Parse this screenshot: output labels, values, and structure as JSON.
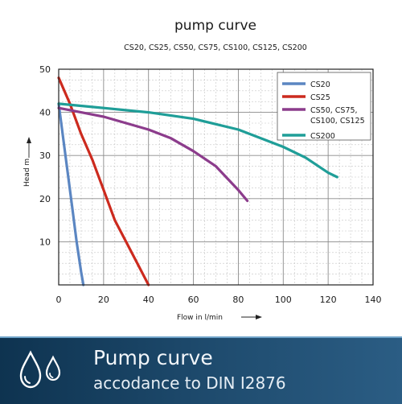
{
  "chart_data": {
    "type": "line",
    "title": "pump curve",
    "subtitle": "CS20, CS25, CS50, CS75, CS100, CS125, CS200",
    "xlabel": "Flow in l/min",
    "ylabel": "Head m",
    "xlim": [
      0,
      140
    ],
    "ylim": [
      0,
      50
    ],
    "xticks": [
      0,
      20,
      40,
      60,
      80,
      100,
      120,
      140
    ],
    "yticks": [
      10,
      20,
      30,
      40,
      50
    ],
    "grid": true,
    "legend_position": "top-right",
    "series": [
      {
        "name": "CS20",
        "color": "#5b86c2",
        "x": [
          0,
          2,
          4,
          6,
          8,
          10,
          11
        ],
        "y": [
          42,
          34,
          26,
          18,
          10,
          3,
          0
        ]
      },
      {
        "name": "CS25",
        "color": "#cc2a1e",
        "x": [
          0,
          5,
          10,
          15,
          20,
          25,
          30,
          35,
          40
        ],
        "y": [
          48,
          42,
          35,
          29,
          22,
          15,
          10,
          5,
          0
        ]
      },
      {
        "name": "CS50, CS75, CS100, CS125",
        "color": "#8c3c8c",
        "x": [
          0,
          10,
          20,
          30,
          40,
          50,
          60,
          70,
          80,
          84
        ],
        "y": [
          41,
          40,
          39,
          37.5,
          36,
          34,
          31,
          27.5,
          22,
          19.5
        ]
      },
      {
        "name": "CS200",
        "color": "#1f9e98",
        "x": [
          0,
          20,
          40,
          60,
          80,
          100,
          110,
          120,
          124
        ],
        "y": [
          42,
          41,
          40,
          38.5,
          36,
          32,
          29.5,
          26,
          25
        ]
      }
    ]
  },
  "banner": {
    "title": "Pump curve",
    "subtitle": "accodance to DIN I2876",
    "icon": "water-drops-icon",
    "background_color": "#1a4468"
  }
}
